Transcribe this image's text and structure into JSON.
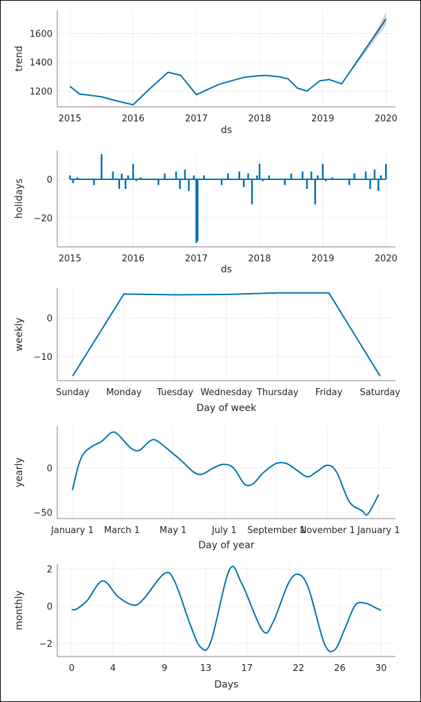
{
  "chart_data": [
    {
      "type": "line",
      "ylabel": "trend",
      "xlabel": "ds",
      "x_ticks": [
        2015,
        2016,
        2017,
        2018,
        2019,
        2020
      ],
      "x_tick_labels": [
        "2015",
        "2016",
        "2017",
        "2018",
        "2019",
        "2020"
      ],
      "y_ticks": [
        1200,
        1400,
        1600
      ],
      "y_tick_labels": [
        "1200",
        "1400",
        "1600"
      ],
      "xlim": [
        2014.8,
        2020.15
      ],
      "ylim": [
        1090,
        1760
      ],
      "grid": true,
      "x": [
        2015.0,
        2015.15,
        2015.5,
        2015.75,
        2016.0,
        2016.25,
        2016.55,
        2016.75,
        2017.0,
        2017.35,
        2017.75,
        2017.95,
        2018.1,
        2018.3,
        2018.45,
        2018.6,
        2018.75,
        2018.95,
        2019.1,
        2019.3,
        2020.0
      ],
      "values": [
        1232,
        1180,
        1160,
        1130,
        1105,
        1210,
        1330,
        1310,
        1175,
        1245,
        1295,
        1305,
        1308,
        1300,
        1285,
        1220,
        1200,
        1270,
        1280,
        1250,
        1700
      ],
      "uncertainty_band": {
        "x": [
          2019.3,
          2019.6,
          2019.8,
          2020.0
        ],
        "lower": [
          1250,
          1420,
          1540,
          1660
        ],
        "upper": [
          1250,
          1440,
          1580,
          1745
        ]
      }
    },
    {
      "type": "bar",
      "ylabel": "holidays",
      "xlabel": "ds",
      "x_ticks": [
        2015,
        2016,
        2017,
        2018,
        2019,
        2020
      ],
      "x_tick_labels": [
        "2015",
        "2016",
        "2017",
        "2018",
        "2019",
        "2020"
      ],
      "y_ticks": [
        -20,
        0
      ],
      "y_tick_labels": [
        "−20",
        "0"
      ],
      "xlim": [
        2014.8,
        2020.15
      ],
      "ylim": [
        -35,
        15
      ],
      "grid": true,
      "baseline": 0,
      "x": [
        2015.0,
        2015.05,
        2015.12,
        2015.38,
        2015.5,
        2015.68,
        2015.78,
        2015.82,
        2015.88,
        2015.92,
        2016.0,
        2016.05,
        2016.12,
        2016.4,
        2016.5,
        2016.68,
        2016.74,
        2016.82,
        2016.88,
        2016.96,
        2017.0,
        2017.02,
        2017.12,
        2017.4,
        2017.5,
        2017.68,
        2017.75,
        2017.82,
        2017.88,
        2017.96,
        2018.0,
        2018.05,
        2018.15,
        2018.4,
        2018.5,
        2018.68,
        2018.75,
        2018.82,
        2018.88,
        2018.92,
        2019.0,
        2019.05,
        2019.15,
        2019.42,
        2019.5,
        2019.68,
        2019.75,
        2019.82,
        2019.88,
        2019.92,
        2020.0
      ],
      "values": [
        2,
        -2,
        1,
        -3,
        13,
        4,
        -5,
        3,
        -5,
        2,
        8,
        -1,
        1,
        -3,
        3,
        4,
        -5,
        5,
        -6,
        2,
        -33,
        -32,
        2,
        -3,
        3,
        4,
        -4,
        3,
        -13,
        2,
        8,
        -1,
        2,
        -3,
        3,
        4,
        -5,
        4,
        -13,
        2,
        8,
        -1,
        1,
        -3,
        3,
        4,
        -5,
        5,
        -6,
        2,
        8
      ]
    },
    {
      "type": "line",
      "ylabel": "weekly",
      "xlabel": "Day of week",
      "categories": [
        "Sunday",
        "Monday",
        "Tuesday",
        "Wednesday",
        "Thursday",
        "Friday",
        "Saturday"
      ],
      "values": [
        -15,
        6.2,
        6.0,
        6.1,
        6.5,
        6.5,
        -15
      ],
      "y_ticks": [
        -10,
        0
      ],
      "y_tick_labels": [
        "−10",
        "0"
      ],
      "ylim": [
        -16.2,
        7.7
      ],
      "grid": true
    },
    {
      "type": "line",
      "ylabel": "yearly",
      "xlabel": "Day of year",
      "x_ticks": [
        0,
        59,
        120,
        181,
        243,
        304,
        365
      ],
      "x_tick_labels": [
        "January 1",
        "March 1",
        "May 1",
        "July 1",
        "September 1",
        "November 1",
        "January 1"
      ],
      "y_ticks": [
        -50,
        0
      ],
      "y_tick_labels": [
        "−50",
        "0"
      ],
      "xlim": [
        -18,
        385
      ],
      "ylim": [
        -57,
        47
      ],
      "grid": true,
      "x": [
        0,
        8,
        15,
        25,
        35,
        47,
        55,
        70,
        80,
        92,
        100,
        115,
        130,
        145,
        155,
        168,
        180,
        192,
        205,
        215,
        228,
        243,
        255,
        268,
        280,
        290,
        304,
        315,
        330,
        345,
        352,
        365
      ],
      "values": [
        -25,
        5,
        18,
        25,
        30,
        40,
        37,
        22,
        20,
        30,
        31,
        20,
        8,
        -5,
        -7,
        0,
        4,
        0,
        -18,
        -18,
        -5,
        5,
        5,
        -3,
        -10,
        -5,
        3,
        -5,
        -38,
        -48,
        -52,
        -30
      ]
    },
    {
      "type": "line",
      "ylabel": "monthly",
      "xlabel": "Days",
      "x_ticks": [
        0,
        4,
        9,
        13,
        17,
        22,
        26,
        30
      ],
      "x_tick_labels": [
        "0",
        "4",
        "9",
        "13",
        "17",
        "22",
        "26",
        "30"
      ],
      "y_ticks": [
        -2,
        0,
        2
      ],
      "y_tick_labels": [
        "−2",
        "0",
        "2"
      ],
      "xlim": [
        -1.4,
        31.4
      ],
      "ylim": [
        -2.7,
        2.25
      ],
      "grid": true,
      "x": [
        0,
        0.5,
        1.5,
        3,
        4.5,
        6,
        7,
        9,
        10,
        11.5,
        12.5,
        13.5,
        15.3,
        16.5,
        18.5,
        19.5,
        21,
        22,
        23,
        24.5,
        25.5,
        26.5,
        27.5,
        28.5,
        29.5,
        30
      ],
      "values": [
        -0.2,
        -0.15,
        0.3,
        1.35,
        0.5,
        0.05,
        0.4,
        1.75,
        1.3,
        -1.0,
        -2.2,
        -1.9,
        1.95,
        1.2,
        -1.3,
        -0.9,
        1.2,
        1.7,
        0.9,
        -2.0,
        -2.35,
        -1.2,
        0.05,
        0.15,
        -0.1,
        -0.22
      ]
    }
  ]
}
